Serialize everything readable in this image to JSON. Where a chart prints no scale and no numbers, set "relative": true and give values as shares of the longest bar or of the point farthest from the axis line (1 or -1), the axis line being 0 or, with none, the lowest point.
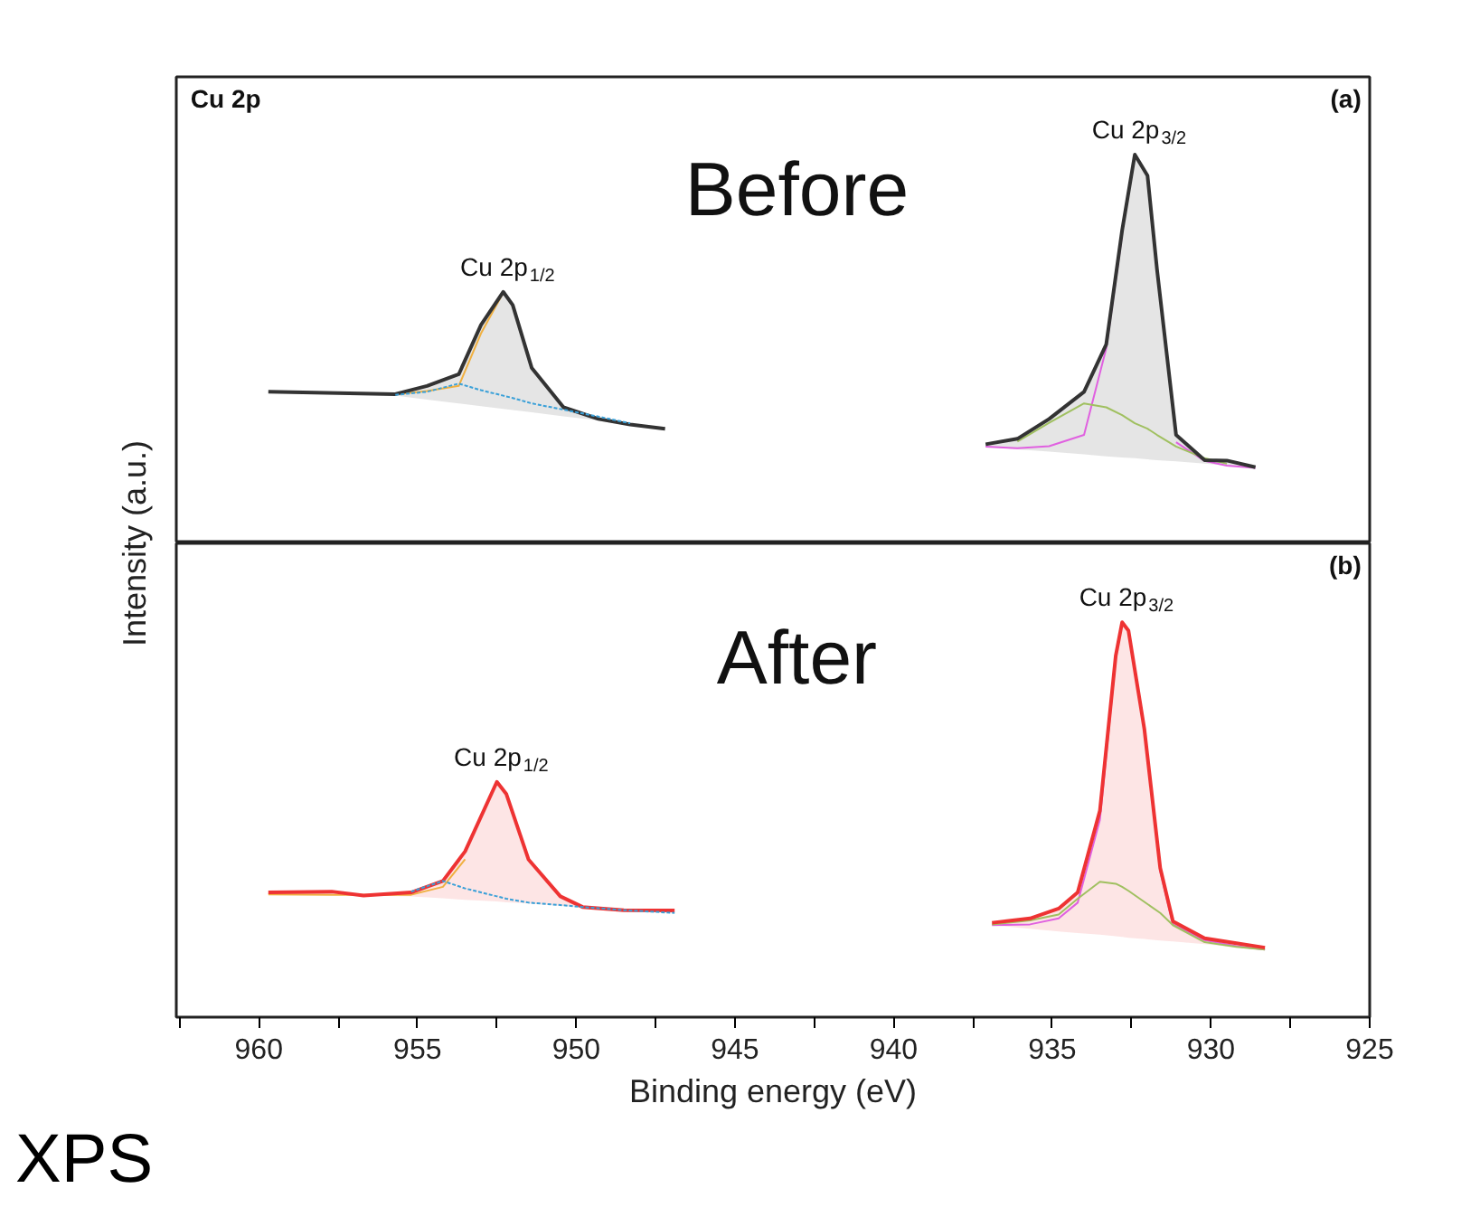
{
  "chart_data": [
    {
      "type": "line",
      "relative": true,
      "title": "Cu 2p",
      "subtitle": "Before",
      "ylabel": "Intensity (a.u.)",
      "tick_labels": false,
      "xlim": [
        962.6,
        925
      ],
      "annotations": [
        "(a)",
        {
          "text": "Cu 2p$_{1/2}$",
          "x": 952.3,
          "y": 0.647
        },
        {
          "text": "Cu 2p$_{3/2}$",
          "x": 932.4,
          "y": 1.0
        }
      ],
      "series": [
        {
          "color": "#333333",
          "x": [
            959.7,
            955.7,
            954.7,
            953.7,
            953.0,
            952.3,
            952.0,
            951.4,
            950.4,
            949.3,
            948.3,
            947.2
          ],
          "values": [
            0.39,
            0.384,
            0.405,
            0.435,
            0.562,
            0.647,
            0.613,
            0.451,
            0.35,
            0.32,
            0.306,
            0.295
          ],
          "upper": [
            0.39,
            0.384,
            0.405,
            0.435,
            0.562,
            0.647,
            0.613,
            0.451,
            0.35,
            0.32,
            0.306,
            0.295
          ],
          "lower": [
            0.388,
            0.38,
            0.37,
            0.36,
            0.353,
            0.346,
            0.343,
            0.337,
            0.327,
            0.316,
            0.306,
            0.295
          ]
        },
        {
          "color": "#3aa0d8",
          "line_style": "dashed",
          "x": [
            955.7,
            954.7,
            953.7,
            953.0,
            952.3,
            952.0,
            951.4,
            950.4,
            949.3,
            948.3
          ],
          "values": [
            0.382,
            0.39,
            0.411,
            0.394,
            0.38,
            0.374,
            0.36,
            0.344,
            0.326,
            0.309
          ]
        },
        {
          "color": "#f0b040",
          "x": [
            955.7,
            954.7,
            953.7,
            953.0,
            952.3
          ],
          "values": [
            0.383,
            0.392,
            0.405,
            0.54,
            0.645
          ]
        },
        {
          "color": "#333333",
          "x": [
            937.1,
            936.1,
            935.1,
            934.0,
            933.3,
            932.8,
            932.4,
            932.0,
            931.7,
            931.1,
            930.2,
            929.5,
            928.6
          ],
          "values": [
            0.255,
            0.269,
            0.32,
            0.39,
            0.512,
            0.805,
            1.0,
            0.946,
            0.704,
            0.279,
            0.214,
            0.213,
            0.196
          ],
          "upper": [
            0.255,
            0.269,
            0.32,
            0.39,
            0.512,
            0.805,
            1.0,
            0.946,
            0.704,
            0.279,
            0.214,
            0.213,
            0.196
          ],
          "lower": [
            0.249,
            0.242,
            0.236,
            0.229,
            0.224,
            0.221,
            0.219,
            0.216,
            0.214,
            0.211,
            0.205,
            0.2,
            0.194
          ]
        },
        {
          "color": "#e060e0",
          "x": [
            937.1,
            936.1,
            935.1,
            934.0,
            933.3,
            932.8,
            932.4,
            932.0,
            931.7,
            931.1,
            930.2,
            929.5,
            928.6
          ],
          "values": [
            0.249,
            0.245,
            0.25,
            0.279,
            0.502,
            0.795,
            null,
            null,
            null,
            0.26,
            0.212,
            0.2,
            0.194
          ]
        },
        {
          "color": "#a0c060",
          "x": [
            936.1,
            935.1,
            934.0,
            933.3,
            932.8,
            932.4,
            932.0,
            931.7,
            931.1,
            930.2,
            929.5
          ],
          "values": [
            0.262,
            0.31,
            0.36,
            0.35,
            0.33,
            0.309,
            0.295,
            0.279,
            0.249,
            0.219,
            0.205
          ]
        }
      ]
    },
    {
      "type": "line",
      "relative": true,
      "subtitle": "After",
      "xlabel": "Binding energy (eV)",
      "tick_labels": "x",
      "xlim": [
        962.6,
        925
      ],
      "xticks": [
        {
          "value": 962.5,
          "label": null
        },
        960,
        {
          "value": 957.5,
          "label": null
        },
        955,
        {
          "value": 952.5,
          "label": null
        },
        950,
        {
          "value": 947.5,
          "label": null
        },
        945,
        {
          "value": 942.5,
          "label": null
        },
        940,
        {
          "value": 937.5,
          "label": null
        },
        935,
        {
          "value": 932.5,
          "label": null
        },
        930,
        {
          "value": 927.5,
          "label": null
        },
        925
      ],
      "annotations": [
        "(b)",
        "XPS",
        {
          "text": "Cu 2p$_{1/2}$",
          "x": 952.5,
          "y": 0.596
        },
        {
          "text": "Cu 2p$_{3/2}$",
          "x": 932.8,
          "y": 1.0
        }
      ],
      "series": [
        {
          "color": "#ee3333",
          "x": [
            959.7,
            957.7,
            956.7,
            955.2,
            954.2,
            953.5,
            952.5,
            952.2,
            951.5,
            950.5,
            949.8,
            948.5,
            946.9
          ],
          "values": [
            0.316,
            0.318,
            0.308,
            0.316,
            0.345,
            0.42,
            0.596,
            0.565,
            0.399,
            0.306,
            0.279,
            0.271,
            0.27
          ],
          "upper": [
            0.316,
            0.318,
            0.308,
            0.316,
            0.345,
            0.42,
            0.596,
            0.565,
            0.399,
            0.306,
            0.279,
            0.271,
            0.27
          ],
          "lower": [
            0.311,
            0.309,
            0.308,
            0.306,
            0.301,
            0.297,
            0.293,
            0.291,
            0.288,
            0.282,
            0.278,
            0.272,
            0.264
          ]
        },
        {
          "color": "#3aa0d8",
          "line_style": "dashed",
          "x": [
            955.2,
            954.2,
            953.5,
            952.5,
            952.2,
            951.5,
            950.5,
            949.8,
            948.5,
            946.9
          ],
          "values": [
            0.318,
            0.345,
            0.326,
            0.306,
            0.3,
            0.29,
            0.284,
            0.279,
            0.271,
            0.264
          ]
        },
        {
          "color": "#f0b040",
          "x": [
            959.7,
            957.7,
            955.2,
            954.2,
            953.5
          ],
          "values": [
            0.311,
            0.31,
            0.31,
            0.33,
            0.4
          ]
        },
        {
          "color": "#ee3333",
          "x": [
            936.9,
            935.7,
            934.8,
            934.2,
            933.5,
            933.0,
            932.8,
            932.6,
            932.1,
            931.6,
            931.2,
            930.2,
            929.2,
            928.3
          ],
          "values": [
            0.239,
            0.25,
            0.275,
            0.316,
            0.523,
            0.916,
            1.0,
            0.979,
            0.73,
            0.378,
            0.243,
            0.2,
            0.187,
            0.176
          ],
          "upper": [
            0.239,
            0.25,
            0.275,
            0.316,
            0.523,
            0.916,
            1.0,
            0.979,
            0.73,
            0.378,
            0.243,
            0.2,
            0.187,
            0.176
          ],
          "lower": [
            0.233,
            0.224,
            0.217,
            0.213,
            0.209,
            0.205,
            0.203,
            0.201,
            0.198,
            0.194,
            0.192,
            0.185,
            0.177,
            0.171
          ]
        },
        {
          "color": "#e060e0",
          "x": [
            936.9,
            935.7,
            934.8,
            934.2,
            933.5,
            933.0,
            932.8,
            932.6,
            932.1,
            931.6,
            931.2,
            930.2,
            929.2,
            928.3
          ],
          "values": [
            0.233,
            0.235,
            0.25,
            0.29,
            0.5,
            0.91,
            null,
            null,
            null,
            0.37,
            0.235,
            0.195,
            0.18,
            0.171
          ]
        },
        {
          "color": "#a0c060",
          "x": [
            936.9,
            935.7,
            934.8,
            934.2,
            933.5,
            933.0,
            932.8,
            932.6,
            932.1,
            931.6,
            931.2,
            930.2,
            929.2,
            928.3
          ],
          "values": [
            0.235,
            0.245,
            0.26,
            0.3,
            0.343,
            0.338,
            0.33,
            0.32,
            0.292,
            0.264,
            0.233,
            0.19,
            0.178,
            0.171
          ]
        }
      ]
    }
  ]
}
